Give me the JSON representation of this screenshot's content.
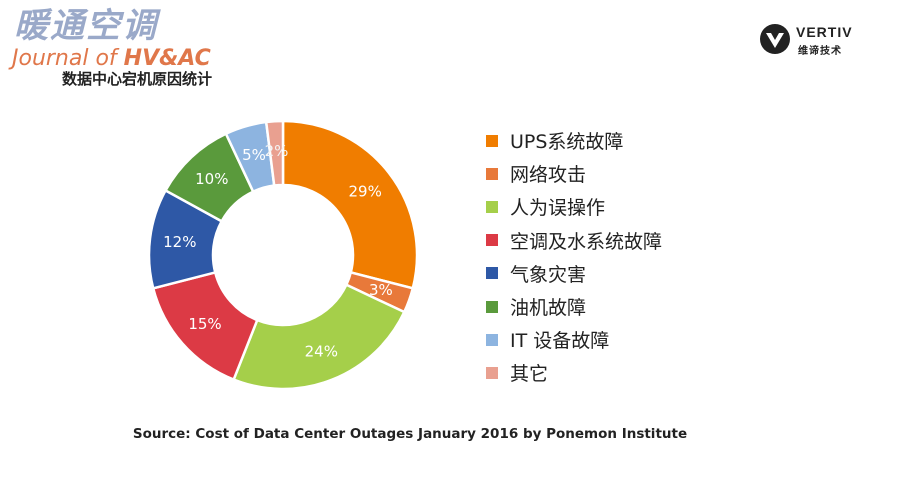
{
  "logo": {
    "cn": "暖通空调",
    "en_prefix": "Journal of ",
    "en_highlight": "HV&AC"
  },
  "brand": {
    "name": "VERTIV",
    "name_cn": "维谛技术"
  },
  "chart_data": {
    "type": "pie",
    "donut": true,
    "title": "数据中心宕机原因统计",
    "categories": [
      "UPS系统故障",
      "网络攻击",
      "人为误操作",
      "空调及水系统故障",
      "气象灾害",
      "油机故障",
      "IT 设备故障",
      "其它"
    ],
    "values": [
      29,
      3,
      24,
      15,
      12,
      10,
      5,
      2
    ],
    "value_labels": [
      "29%",
      "3%",
      "24%",
      "15%",
      "12%",
      "10%",
      "5%",
      "2%"
    ],
    "colors": [
      "#f07d00",
      "#e8793a",
      "#a5cf4a",
      "#dc3a45",
      "#2e58a6",
      "#5a9a3c",
      "#8db4e0",
      "#e9a090"
    ],
    "legend_position": "right"
  },
  "source": "Source: Cost of Data Center Outages January 2016 by Ponemon Institute"
}
